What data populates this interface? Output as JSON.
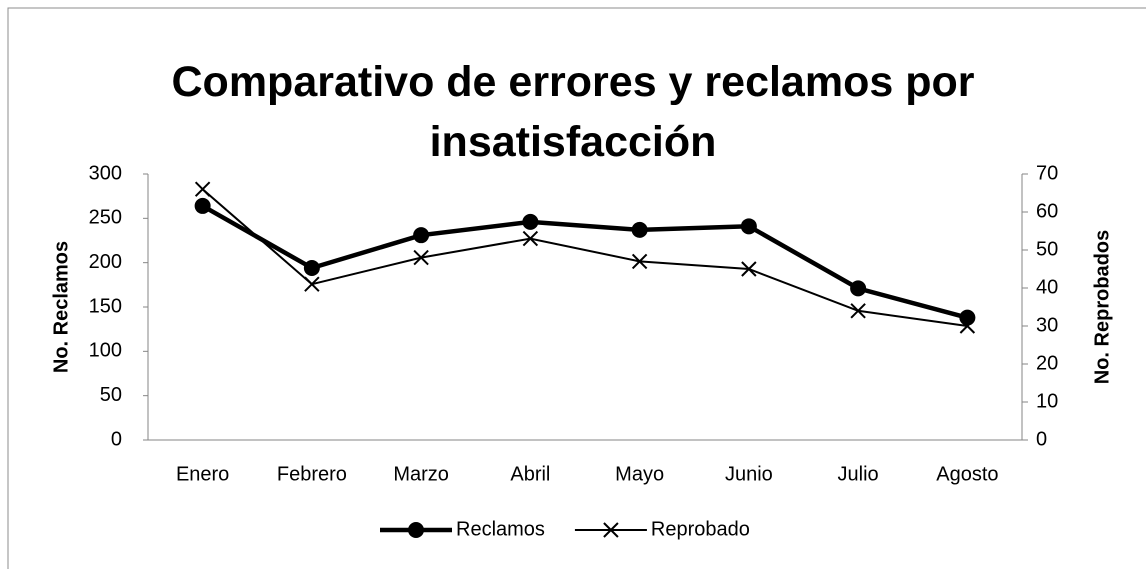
{
  "chart_data": {
    "type": "line",
    "title": "Comparativo de errores y reclamos por insatisfacción",
    "categories": [
      "Enero",
      "Febrero",
      "Marzo",
      "Abril",
      "Mayo",
      "Junio",
      "Julio",
      "Agosto"
    ],
    "series": [
      {
        "name": "Reclamos",
        "color": "#000000",
        "marker": "circle",
        "axis": "y",
        "values": [
          264,
          194,
          231,
          246,
          237,
          241,
          171,
          138
        ]
      },
      {
        "name": "Reprobado",
        "color": "#000000",
        "marker": "x",
        "axis": "y2",
        "values": [
          66,
          41,
          48,
          53,
          47,
          45,
          34,
          30
        ]
      }
    ],
    "ylabel": "No. Reclamos",
    "y2label": "No. Reprobados",
    "ylim": [
      0,
      300
    ],
    "yticks": [
      0,
      50,
      100,
      150,
      200,
      250,
      300
    ],
    "y2lim": [
      0,
      70
    ],
    "y2ticks": [
      0,
      10,
      20,
      30,
      40,
      50,
      60,
      70
    ],
    "legend": "bottom",
    "grid": false
  }
}
